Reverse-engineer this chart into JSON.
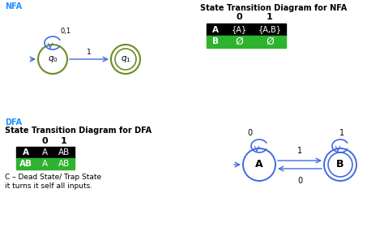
{
  "nfa_label": "NFA",
  "dfa_label": "DFA",
  "nfa_title": "State Transition Diagram for NFA",
  "dfa_title": "State Transition Diagram for DFA",
  "nfa_arrow_color": "#4169E1",
  "dfa_arrow_color": "#4169E1",
  "node_color_olive": "#6B8E23",
  "label_color": "#1E90FF",
  "green_color": "#2DB32D",
  "nfa_table_rows": [
    [
      "A",
      "{A}",
      "{A,B}"
    ],
    [
      "B",
      "Ø",
      "Ø"
    ]
  ],
  "dfa_table_rows": [
    [
      "A",
      "A",
      "AB"
    ],
    [
      "AB",
      "A",
      "AB"
    ]
  ],
  "note_line1": "C – Dead State/ Trap State",
  "note_line2": "it turns it self all inputs."
}
